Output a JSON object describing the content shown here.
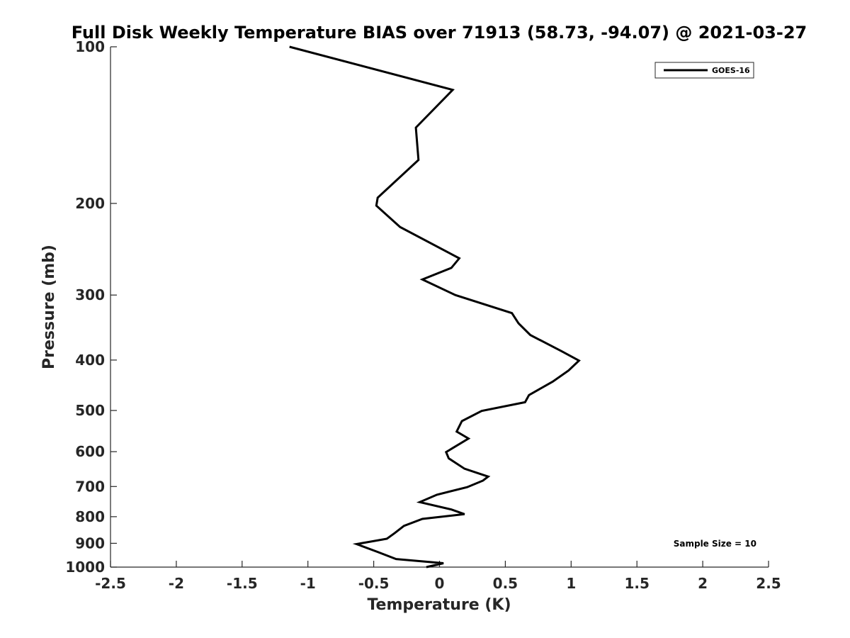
{
  "chart_data": {
    "type": "line",
    "title": "Full Disk Weekly Temperature BIAS over 71913 (58.73, -94.07) @ 2021-03-27",
    "xlabel": "Temperature (K)",
    "ylabel": "Pressure (mb)",
    "xlim": [
      -2.5,
      2.5
    ],
    "ylim": [
      100,
      1000
    ],
    "y_scale": "log",
    "y_reversed": true,
    "grid": false,
    "x_ticks": [
      -2.5,
      -2,
      -1.5,
      -1,
      -0.5,
      0,
      0.5,
      1,
      1.5,
      2,
      2.5
    ],
    "x_tick_labels": [
      "-2.5",
      "-2",
      "-1.5",
      "-1",
      "-0.5",
      "0",
      "0.5",
      "1",
      "1.5",
      "2",
      "2.5"
    ],
    "y_ticks": [
      100,
      200,
      300,
      400,
      500,
      600,
      700,
      800,
      900,
      1000
    ],
    "y_tick_labels": [
      "100",
      "200",
      "300",
      "400",
      "500",
      "600",
      "700",
      "800",
      "900",
      "1000"
    ],
    "legend_position": "top-right",
    "annotation": "Sample Size = 10",
    "series": [
      {
        "name": "GOES-16",
        "color": "#000000",
        "points": [
          {
            "x": -1.14,
            "p": 100
          },
          {
            "x": 0.1,
            "p": 121
          },
          {
            "x": -0.18,
            "p": 143
          },
          {
            "x": -0.16,
            "p": 165
          },
          {
            "x": -0.47,
            "p": 195
          },
          {
            "x": -0.48,
            "p": 202
          },
          {
            "x": -0.3,
            "p": 222
          },
          {
            "x": 0.15,
            "p": 255
          },
          {
            "x": 0.09,
            "p": 266
          },
          {
            "x": -0.13,
            "p": 280
          },
          {
            "x": 0.12,
            "p": 300
          },
          {
            "x": 0.55,
            "p": 325
          },
          {
            "x": 0.6,
            "p": 340
          },
          {
            "x": 0.69,
            "p": 358
          },
          {
            "x": 0.93,
            "p": 385
          },
          {
            "x": 1.06,
            "p": 401
          },
          {
            "x": 0.98,
            "p": 419
          },
          {
            "x": 0.86,
            "p": 440
          },
          {
            "x": 0.68,
            "p": 467
          },
          {
            "x": 0.65,
            "p": 482
          },
          {
            "x": 0.32,
            "p": 501
          },
          {
            "x": 0.17,
            "p": 524
          },
          {
            "x": 0.13,
            "p": 549
          },
          {
            "x": 0.22,
            "p": 566
          },
          {
            "x": 0.05,
            "p": 601
          },
          {
            "x": 0.07,
            "p": 618
          },
          {
            "x": 0.19,
            "p": 647
          },
          {
            "x": 0.37,
            "p": 670
          },
          {
            "x": 0.33,
            "p": 682
          },
          {
            "x": 0.21,
            "p": 702
          },
          {
            "x": -0.02,
            "p": 726
          },
          {
            "x": -0.15,
            "p": 750
          },
          {
            "x": 0.09,
            "p": 775
          },
          {
            "x": 0.19,
            "p": 791
          },
          {
            "x": -0.13,
            "p": 808
          },
          {
            "x": -0.27,
            "p": 833
          },
          {
            "x": -0.34,
            "p": 860
          },
          {
            "x": -0.4,
            "p": 882
          },
          {
            "x": -0.63,
            "p": 903
          },
          {
            "x": -0.47,
            "p": 935
          },
          {
            "x": -0.33,
            "p": 965
          },
          {
            "x": 0.03,
            "p": 983
          },
          {
            "x": -0.1,
            "p": 1000
          }
        ]
      }
    ]
  }
}
